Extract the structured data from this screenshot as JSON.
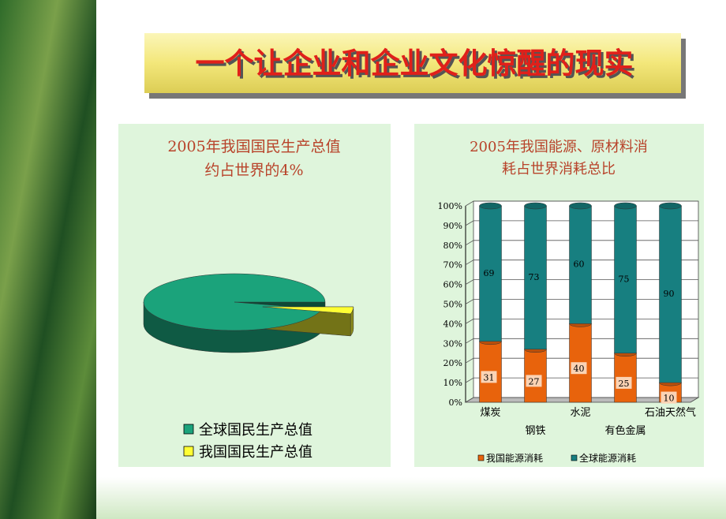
{
  "slide_title": "一个让企业和企业文化惊醒的现实",
  "chart_data": [
    {
      "type": "pie",
      "title": [
        "2005年我国国民生产总值",
        "约占世界的4%"
      ],
      "categories": [
        "全球国民生产总值",
        "我国国民生产总值"
      ],
      "values": [
        96,
        4
      ],
      "colors": [
        "#1ba37b",
        "#ffff33"
      ]
    },
    {
      "type": "bar",
      "stacked": true,
      "title": [
        "2005年我国能源、原材料消",
        "耗占世界消耗总比"
      ],
      "categories": [
        "煤炭",
        "钢铁",
        "水泥",
        "有色金属",
        "石油天然气"
      ],
      "series": [
        {
          "name": "我国能源消耗",
          "color": "#e8630c",
          "values": [
            31,
            27,
            40,
            25,
            10
          ]
        },
        {
          "name": "全球能源消耗",
          "color": "#177f80",
          "values": [
            69,
            73,
            60,
            75,
            90
          ]
        }
      ],
      "ylim": [
        0,
        100
      ],
      "yticks": [
        {
          "value": 0,
          "label": "0%"
        },
        {
          "value": 10,
          "label": "10%"
        },
        {
          "value": 20,
          "label": "20%"
        },
        {
          "value": 30,
          "label": "30%"
        },
        {
          "value": 40,
          "label": "40%"
        },
        {
          "value": 50,
          "label": "50%"
        },
        {
          "value": 60,
          "label": "60%"
        },
        {
          "value": 70,
          "label": "70%"
        },
        {
          "value": 80,
          "label": "80%"
        },
        {
          "value": 90,
          "label": "90%"
        },
        {
          "value": 100,
          "label": "100%"
        }
      ],
      "grid": true
    }
  ]
}
